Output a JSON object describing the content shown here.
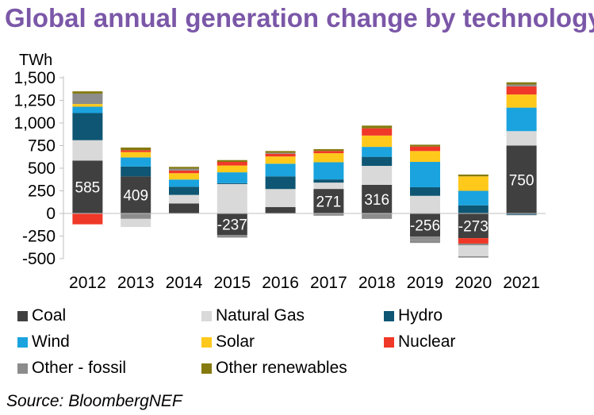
{
  "chart_data": {
    "type": "bar",
    "stacked": true,
    "title": "Global annual generation change by technology",
    "ylabel": "TWh",
    "ylim": [
      -500,
      1500
    ],
    "yticks": [
      1500,
      1250,
      1000,
      750,
      500,
      250,
      0,
      -250,
      -500
    ],
    "ytick_labels": [
      "1,500",
      "1,250",
      "1,000",
      "750",
      "500",
      "250",
      "0",
      "-250",
      "-500"
    ],
    "categories": [
      "2012",
      "2013",
      "2014",
      "2015",
      "2016",
      "2017",
      "2018",
      "2019",
      "2020",
      "2021"
    ],
    "series": [
      {
        "name": "Coal",
        "color": "#404040",
        "values": [
          585,
          409,
          110,
          -237,
          70,
          271,
          316,
          -256,
          -273,
          750
        ]
      },
      {
        "name": "Natural Gas",
        "color": "#D9D9D9",
        "values": [
          225,
          0,
          95,
          325,
          200,
          70,
          210,
          195,
          0,
          160
        ]
      },
      {
        "name": "Hydro",
        "color": "#0E5673",
        "values": [
          300,
          110,
          90,
          10,
          140,
          35,
          100,
          95,
          90,
          -15
        ]
      },
      {
        "name": "Wind",
        "color": "#1AA3DE",
        "values": [
          70,
          100,
          80,
          120,
          140,
          190,
          110,
          280,
          160,
          260
        ]
      },
      {
        "name": "Solar",
        "color": "#FFC91C",
        "values": [
          30,
          60,
          70,
          75,
          80,
          100,
          125,
          120,
          160,
          145
        ]
      },
      {
        "name": "Nuclear",
        "color": "#F03828",
        "values": [
          -120,
          20,
          30,
          40,
          30,
          25,
          80,
          50,
          -60,
          90
        ]
      },
      {
        "name": "Other - fossil",
        "color": "#8C8C8C",
        "values": [
          115,
          -60,
          20,
          -30,
          10,
          -25,
          -60,
          -40,
          -20,
          20
        ]
      },
      {
        "name": "Other renewables",
        "color": "#857A0F",
        "values": [
          25,
          30,
          20,
          20,
          20,
          20,
          30,
          20,
          20,
          25
        ]
      }
    ],
    "extra_negatives": [
      {
        "series": "Natural Gas",
        "values": [
          0,
          -90,
          0,
          0,
          0,
          0,
          0,
          0,
          -120,
          0
        ]
      },
      {
        "series": "Other - fossil",
        "values": [
          0,
          0,
          0,
          0,
          0,
          0,
          0,
          -30,
          -15,
          -5
        ]
      }
    ],
    "data_labels": [
      {
        "category": "2012",
        "text": "585"
      },
      {
        "category": "2013",
        "text": "409"
      },
      {
        "category": "2015",
        "text": "-237"
      },
      {
        "category": "2017",
        "text": "271"
      },
      {
        "category": "2018",
        "text": "316"
      },
      {
        "category": "2019",
        "text": "-256"
      },
      {
        "category": "2020",
        "text": "-273"
      },
      {
        "category": "2021",
        "text": "750"
      }
    ],
    "legend_position": "bottom",
    "grid": false
  },
  "legend": [
    {
      "label": "Coal",
      "color": "#404040"
    },
    {
      "label": "Natural Gas",
      "color": "#D9D9D9"
    },
    {
      "label": "Hydro",
      "color": "#0E5673"
    },
    {
      "label": "Wind",
      "color": "#1AA3DE"
    },
    {
      "label": "Solar",
      "color": "#FFC91C"
    },
    {
      "label": "Nuclear",
      "color": "#F03828"
    },
    {
      "label": "Other - fossil",
      "color": "#8C8C8C"
    },
    {
      "label": "Other renewables",
      "color": "#857A0F"
    }
  ],
  "title": "Global annual generation change by technology",
  "source": "Source: BloombergNEF",
  "colors": {
    "title": "#7B57A8"
  }
}
